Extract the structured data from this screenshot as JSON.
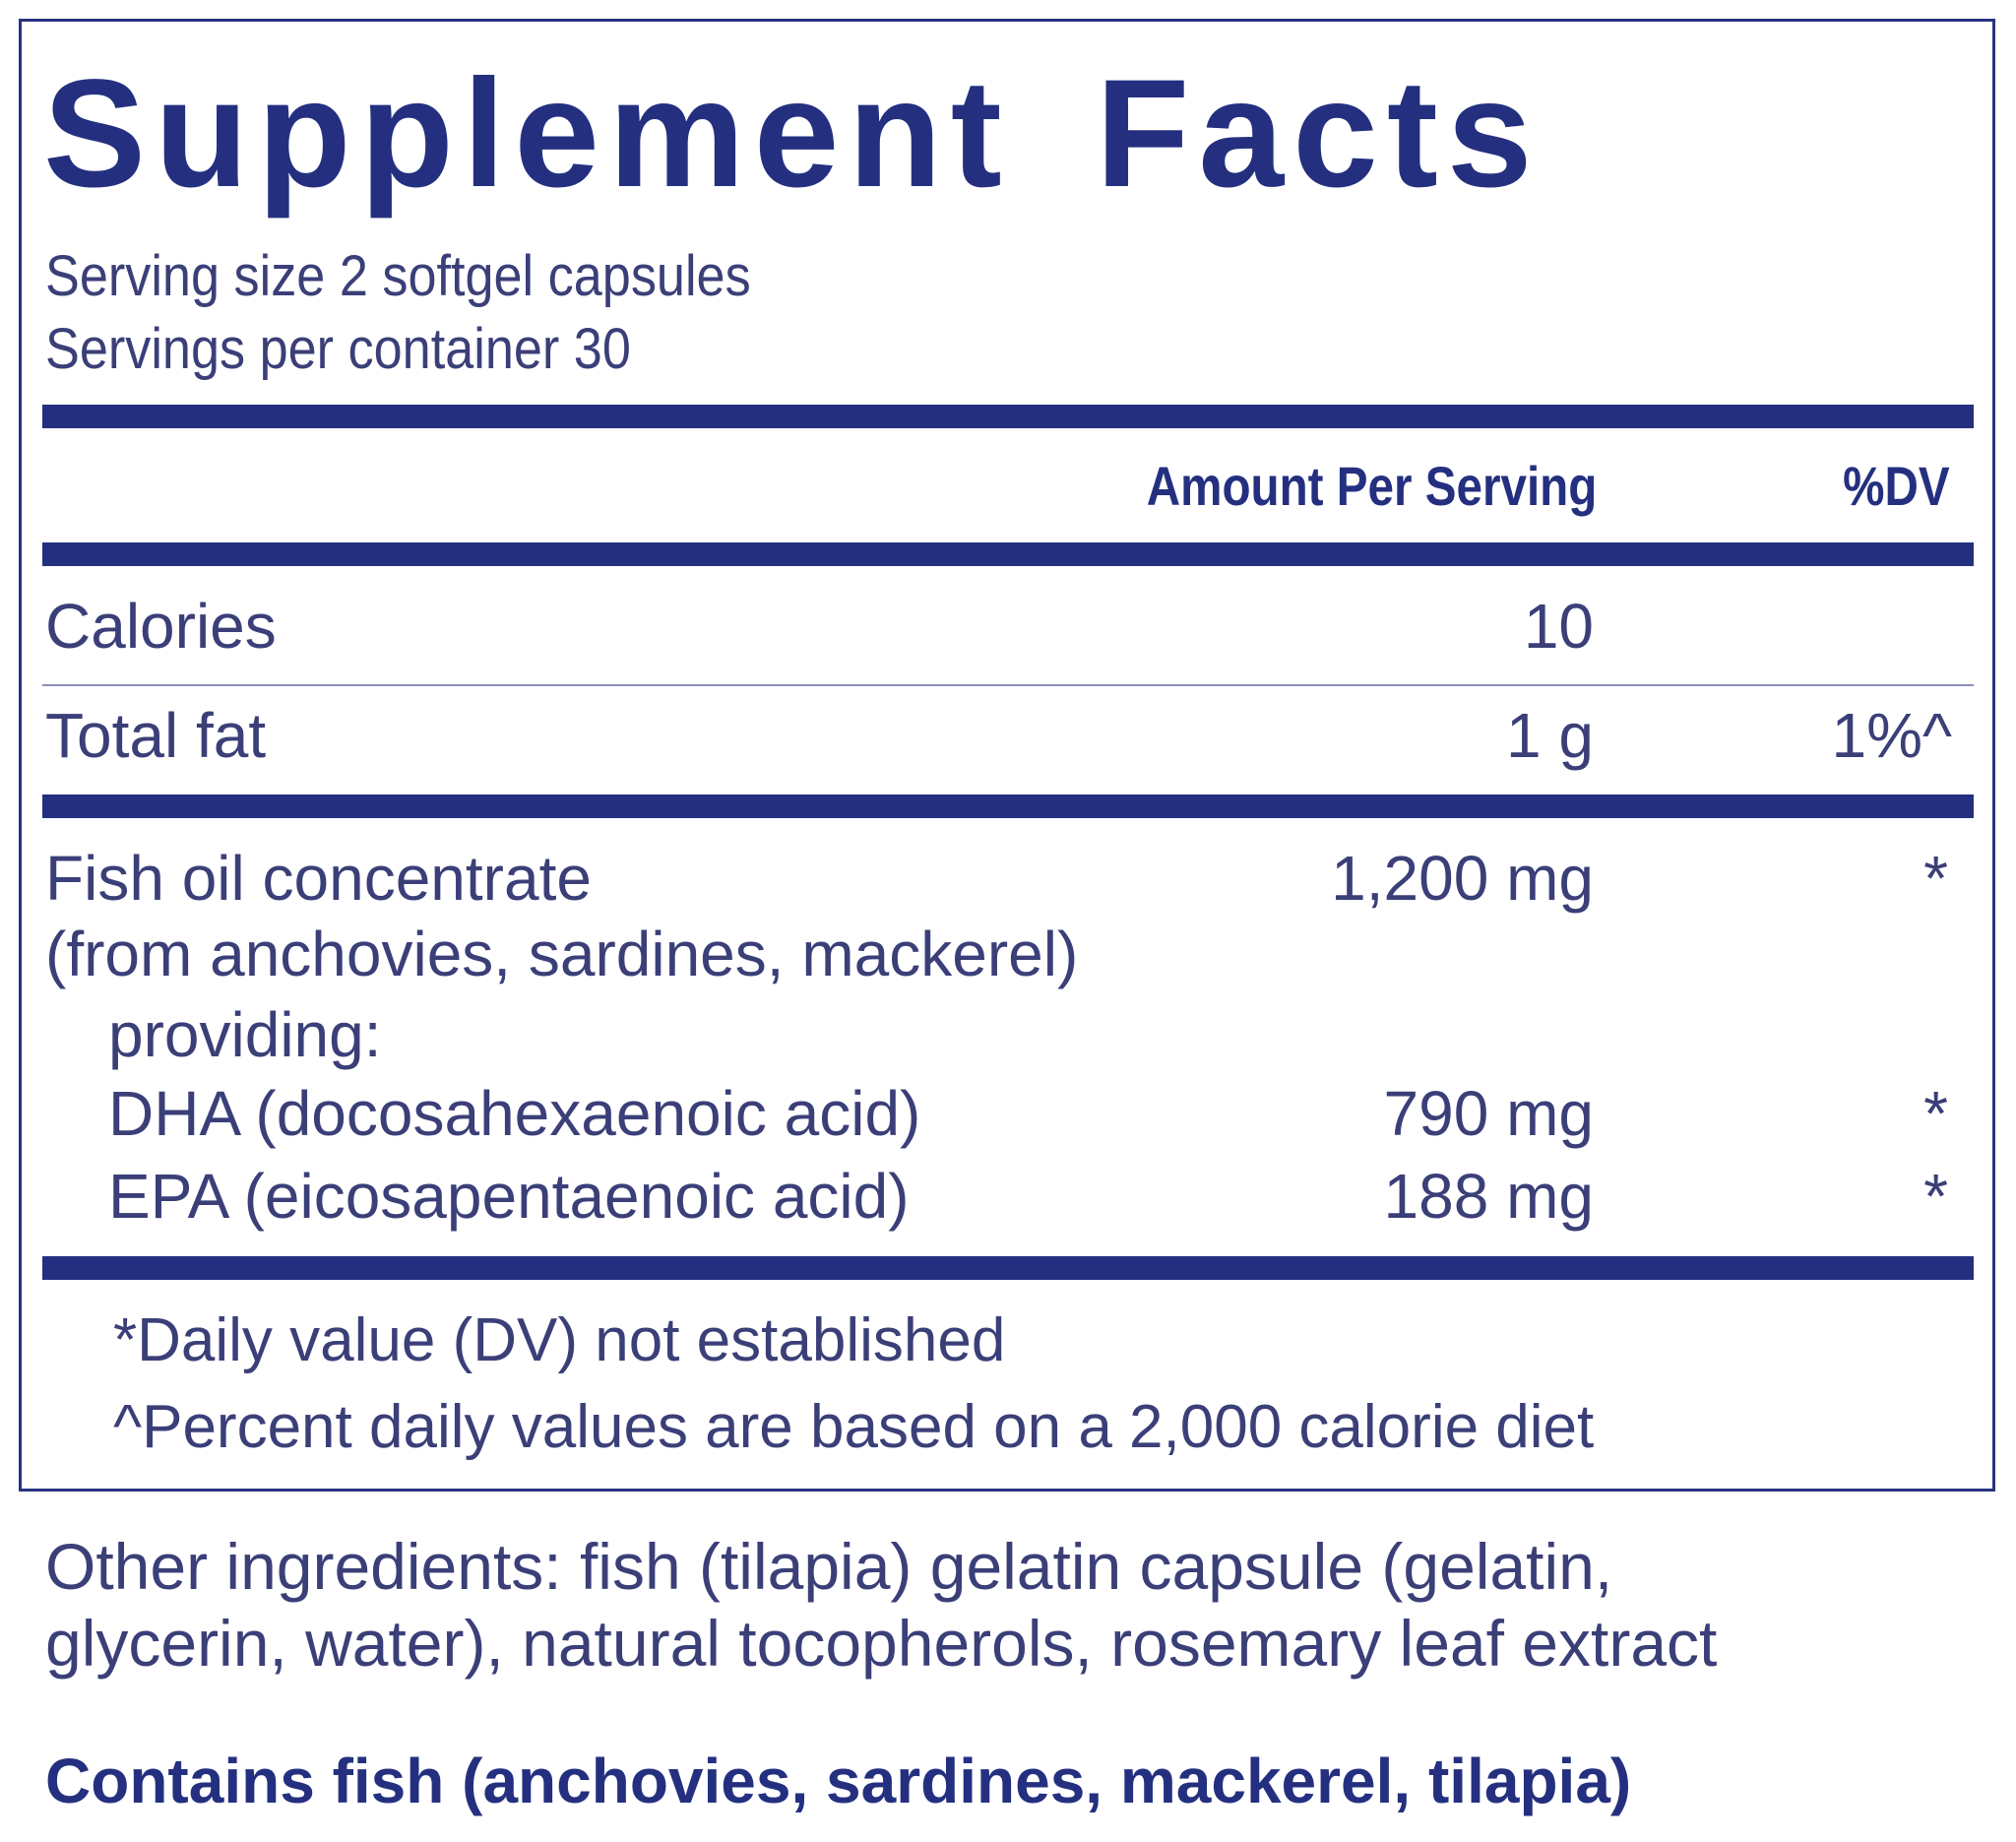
{
  "title": "Supplement Facts",
  "serving_size": "Serving size  2 softgel capsules",
  "servings_per_container": "Servings per container  30",
  "header": {
    "amount": "Amount Per Serving",
    "dv": "%DV"
  },
  "rows": [
    {
      "name": "Calories",
      "amount": "10",
      "dv": ""
    },
    {
      "name": "Total fat",
      "amount": "1 g",
      "dv": "1%^"
    },
    {
      "name": "Fish oil concentrate",
      "amount": "1,200 mg",
      "dv": "*"
    },
    {
      "name": "(from anchovies, sardines, mackerel)",
      "amount": "",
      "dv": ""
    },
    {
      "name": "providing:",
      "amount": "",
      "dv": ""
    },
    {
      "name": "DHA (docosahexaenoic acid)",
      "amount": "790 mg",
      "dv": "*"
    },
    {
      "name": "EPA (eicosapentaenoic acid)",
      "amount": "188 mg",
      "dv": "*"
    }
  ],
  "footnotes": [
    "*Daily value (DV) not established",
    "^Percent daily values are based on a 2,000 calorie diet"
  ],
  "other_ingredients": [
    "Other ingredients: fish (tilapia) gelatin capsule (gelatin,",
    "glycerin, water),  natural tocopherols, rosemary leaf extract"
  ],
  "allergen": "Contains fish (anchovies, sardines, mackerel, tilapia)",
  "colors": {
    "navy": "#24307f",
    "text": "#3b3f78"
  }
}
